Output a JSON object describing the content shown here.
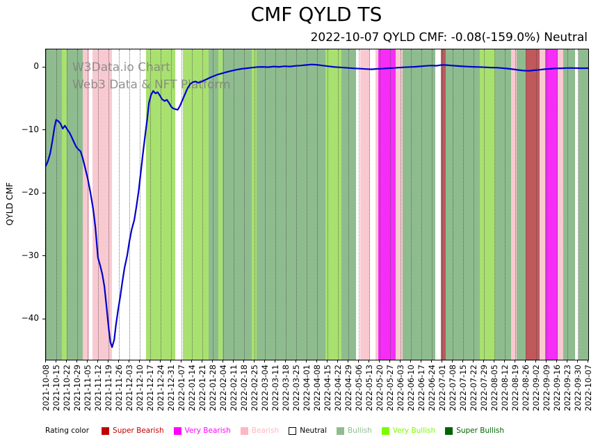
{
  "title": "CMF QYLD TS",
  "subtitle": "2022-10-07 QYLD CMF: -0.08(-159.0%) Neutral",
  "watermark": {
    "line1": "W3Data.io Chart",
    "line2": "Web3 Data & NFT Platform"
  },
  "legend": {
    "label": "Rating color",
    "items": [
      {
        "id": "super-bearish",
        "label": "Super Bearish",
        "color": "#c00000",
        "text_color": "#c00000"
      },
      {
        "id": "very-bearish",
        "label": "Very Bearish",
        "color": "#ff00ff",
        "text_color": "#ff00ff"
      },
      {
        "id": "bearish",
        "label": "Bearish",
        "color": "#ffb6c1",
        "text_color": "#ffb6c1"
      },
      {
        "id": "neutral",
        "label": "Neutral",
        "color": "#ffffff",
        "text_color": "#000000"
      },
      {
        "id": "bullish",
        "label": "Bullish",
        "color": "#8fbc8f",
        "text_color": "#8fbc8f"
      },
      {
        "id": "very-bullish",
        "label": "Very Bullish",
        "color": "#7cfc00",
        "text_color": "#7cfc00"
      },
      {
        "id": "super-bullish",
        "label": "Super Bullish",
        "color": "#006400",
        "text_color": "#006400"
      }
    ]
  },
  "chart_data": {
    "type": "line",
    "title": "CMF QYLD TS",
    "xlabel": "",
    "ylabel": "QYLD CMF",
    "ylim": [
      -46.4,
      2.9
    ],
    "grid": "vertical-dotted",
    "legend_position": "bottom",
    "yticks": [
      {
        "value": 0,
        "label": "0"
      },
      {
        "value": -10,
        "label": "−10"
      },
      {
        "value": -20,
        "label": "−20"
      },
      {
        "value": -30,
        "label": "−30"
      },
      {
        "value": -40,
        "label": "−40"
      }
    ],
    "x_tick_labels": [
      "2021-10-08",
      "2021-10-15",
      "2021-10-22",
      "2021-10-29",
      "2021-11-05",
      "2021-11-12",
      "2021-11-19",
      "2021-11-26",
      "2021-12-03",
      "2021-12-10",
      "2021-12-17",
      "2021-12-24",
      "2021-12-31",
      "2022-01-07",
      "2022-01-14",
      "2022-01-21",
      "2022-01-28",
      "2022-02-04",
      "2022-02-11",
      "2022-02-18",
      "2022-02-25",
      "2022-03-04",
      "2022-03-11",
      "2022-03-18",
      "2022-03-25",
      "2022-04-01",
      "2022-04-08",
      "2022-04-15",
      "2022-04-22",
      "2022-04-29",
      "2022-05-06",
      "2022-05-13",
      "2022-05-20",
      "2022-05-27",
      "2022-06-03",
      "2022-06-10",
      "2022-06-17",
      "2022-06-24",
      "2022-07-01",
      "2022-07-08",
      "2022-07-15",
      "2022-07-22",
      "2022-07-29",
      "2022-08-05",
      "2022-08-12",
      "2022-08-19",
      "2022-08-26",
      "2022-09-02",
      "2022-09-09",
      "2022-09-16",
      "2022-09-23",
      "2022-09-30",
      "2022-10-07"
    ],
    "rating_colors": {
      "super_bearish": "#c0585c",
      "very_bearish": "#f62df6",
      "bearish": "#f9c9d1",
      "neutral": "#ffffff",
      "bullish": "#8fbc8f",
      "very_bullish": "#a9e170",
      "super_bullish": "#2e8b2e"
    },
    "background_bands": [
      {
        "from": 0.0,
        "to": 0.03,
        "rating": "bullish"
      },
      {
        "from": 0.03,
        "to": 0.038,
        "rating": "very_bullish"
      },
      {
        "from": 0.038,
        "to": 0.068,
        "rating": "bullish"
      },
      {
        "from": 0.068,
        "to": 0.08,
        "rating": "bearish"
      },
      {
        "from": 0.08,
        "to": 0.086,
        "rating": "neutral"
      },
      {
        "from": 0.086,
        "to": 0.122,
        "rating": "bearish"
      },
      {
        "from": 0.122,
        "to": 0.184,
        "rating": "neutral"
      },
      {
        "from": 0.184,
        "to": 0.238,
        "rating": "very_bullish"
      },
      {
        "from": 0.238,
        "to": 0.252,
        "rating": "neutral"
      },
      {
        "from": 0.252,
        "to": 0.3,
        "rating": "very_bullish"
      },
      {
        "from": 0.3,
        "to": 0.318,
        "rating": "bullish"
      },
      {
        "from": 0.318,
        "to": 0.326,
        "rating": "very_bullish"
      },
      {
        "from": 0.326,
        "to": 0.38,
        "rating": "bullish"
      },
      {
        "from": 0.38,
        "to": 0.388,
        "rating": "very_bullish"
      },
      {
        "from": 0.388,
        "to": 0.515,
        "rating": "bullish"
      },
      {
        "from": 0.515,
        "to": 0.545,
        "rating": "very_bullish"
      },
      {
        "from": 0.545,
        "to": 0.572,
        "rating": "bullish"
      },
      {
        "from": 0.572,
        "to": 0.58,
        "rating": "neutral"
      },
      {
        "from": 0.58,
        "to": 0.598,
        "rating": "bearish"
      },
      {
        "from": 0.598,
        "to": 0.608,
        "rating": "neutral"
      },
      {
        "from": 0.608,
        "to": 0.613,
        "rating": "bearish"
      },
      {
        "from": 0.613,
        "to": 0.645,
        "rating": "very_bearish"
      },
      {
        "from": 0.645,
        "to": 0.658,
        "rating": "bearish"
      },
      {
        "from": 0.658,
        "to": 0.718,
        "rating": "bullish"
      },
      {
        "from": 0.718,
        "to": 0.728,
        "rating": "neutral"
      },
      {
        "from": 0.728,
        "to": 0.737,
        "rating": "super_bearish"
      },
      {
        "from": 0.737,
        "to": 0.8,
        "rating": "bullish"
      },
      {
        "from": 0.8,
        "to": 0.828,
        "rating": "very_bullish"
      },
      {
        "from": 0.828,
        "to": 0.858,
        "rating": "bullish"
      },
      {
        "from": 0.858,
        "to": 0.868,
        "rating": "bearish"
      },
      {
        "from": 0.868,
        "to": 0.885,
        "rating": "bullish"
      },
      {
        "from": 0.885,
        "to": 0.91,
        "rating": "super_bearish"
      },
      {
        "from": 0.91,
        "to": 0.92,
        "rating": "bearish"
      },
      {
        "from": 0.92,
        "to": 0.944,
        "rating": "very_bearish"
      },
      {
        "from": 0.944,
        "to": 0.954,
        "rating": "bearish"
      },
      {
        "from": 0.954,
        "to": 0.976,
        "rating": "bullish"
      },
      {
        "from": 0.976,
        "to": 0.982,
        "rating": "neutral"
      },
      {
        "from": 0.982,
        "to": 1.0,
        "rating": "bullish"
      }
    ],
    "series": [
      {
        "name": "QYLD CMF",
        "color": "#0000cd",
        "points": [
          [
            0.0,
            -15.6
          ],
          [
            0.004,
            -14.8
          ],
          [
            0.008,
            -13.6
          ],
          [
            0.012,
            -11.6
          ],
          [
            0.016,
            -9.4
          ],
          [
            0.019,
            -8.3
          ],
          [
            0.023,
            -8.5
          ],
          [
            0.027,
            -8.9
          ],
          [
            0.031,
            -9.7
          ],
          [
            0.035,
            -9.2
          ],
          [
            0.04,
            -9.9
          ],
          [
            0.044,
            -10.4
          ],
          [
            0.048,
            -11.1
          ],
          [
            0.052,
            -11.9
          ],
          [
            0.056,
            -12.6
          ],
          [
            0.06,
            -13.0
          ],
          [
            0.064,
            -13.3
          ],
          [
            0.068,
            -14.4
          ],
          [
            0.072,
            -15.8
          ],
          [
            0.077,
            -17.6
          ],
          [
            0.082,
            -19.8
          ],
          [
            0.087,
            -22.4
          ],
          [
            0.091,
            -25.2
          ],
          [
            0.096,
            -30.2
          ],
          [
            0.1,
            -31.4
          ],
          [
            0.104,
            -32.8
          ],
          [
            0.108,
            -34.8
          ],
          [
            0.112,
            -38.2
          ],
          [
            0.116,
            -41.6
          ],
          [
            0.119,
            -43.6
          ],
          [
            0.122,
            -44.4
          ],
          [
            0.126,
            -43.2
          ],
          [
            0.129,
            -41.0
          ],
          [
            0.133,
            -38.6
          ],
          [
            0.137,
            -36.4
          ],
          [
            0.141,
            -34.0
          ],
          [
            0.145,
            -31.8
          ],
          [
            0.15,
            -29.8
          ],
          [
            0.154,
            -27.6
          ],
          [
            0.158,
            -25.8
          ],
          [
            0.163,
            -24.2
          ],
          [
            0.167,
            -22.0
          ],
          [
            0.171,
            -19.6
          ],
          [
            0.175,
            -16.6
          ],
          [
            0.179,
            -13.6
          ],
          [
            0.183,
            -10.8
          ],
          [
            0.187,
            -8.0
          ],
          [
            0.19,
            -5.6
          ],
          [
            0.194,
            -4.3
          ],
          [
            0.198,
            -3.7
          ],
          [
            0.202,
            -4.1
          ],
          [
            0.206,
            -3.9
          ],
          [
            0.21,
            -4.4
          ],
          [
            0.214,
            -5.0
          ],
          [
            0.219,
            -5.3
          ],
          [
            0.223,
            -5.1
          ],
          [
            0.227,
            -5.6
          ],
          [
            0.231,
            -6.2
          ],
          [
            0.235,
            -6.5
          ],
          [
            0.239,
            -6.6
          ],
          [
            0.243,
            -6.7
          ],
          [
            0.247,
            -6.1
          ],
          [
            0.251,
            -5.3
          ],
          [
            0.256,
            -4.3
          ],
          [
            0.261,
            -3.3
          ],
          [
            0.266,
            -2.6
          ],
          [
            0.271,
            -2.3
          ],
          [
            0.276,
            -2.2
          ],
          [
            0.281,
            -2.4
          ],
          [
            0.286,
            -2.25
          ],
          [
            0.291,
            -2.05
          ],
          [
            0.296,
            -1.85
          ],
          [
            0.302,
            -1.6
          ],
          [
            0.308,
            -1.4
          ],
          [
            0.315,
            -1.15
          ],
          [
            0.323,
            -0.95
          ],
          [
            0.331,
            -0.75
          ],
          [
            0.34,
            -0.55
          ],
          [
            0.35,
            -0.35
          ],
          [
            0.36,
            -0.2
          ],
          [
            0.37,
            -0.1
          ],
          [
            0.38,
            0.0
          ],
          [
            0.39,
            0.1
          ],
          [
            0.4,
            0.12
          ],
          [
            0.41,
            0.08
          ],
          [
            0.42,
            0.18
          ],
          [
            0.43,
            0.12
          ],
          [
            0.44,
            0.22
          ],
          [
            0.45,
            0.18
          ],
          [
            0.46,
            0.28
          ],
          [
            0.47,
            0.34
          ],
          [
            0.48,
            0.42
          ],
          [
            0.49,
            0.5
          ],
          [
            0.5,
            0.46
          ],
          [
            0.51,
            0.34
          ],
          [
            0.52,
            0.22
          ],
          [
            0.53,
            0.12
          ],
          [
            0.54,
            0.06
          ],
          [
            0.55,
            0.0
          ],
          [
            0.56,
            -0.06
          ],
          [
            0.57,
            -0.12
          ],
          [
            0.58,
            -0.16
          ],
          [
            0.59,
            -0.22
          ],
          [
            0.6,
            -0.26
          ],
          [
            0.61,
            -0.2
          ],
          [
            0.62,
            -0.16
          ],
          [
            0.63,
            -0.1
          ],
          [
            0.64,
            -0.06
          ],
          [
            0.65,
            0.0
          ],
          [
            0.66,
            0.06
          ],
          [
            0.67,
            0.1
          ],
          [
            0.68,
            0.14
          ],
          [
            0.69,
            0.2
          ],
          [
            0.7,
            0.28
          ],
          [
            0.71,
            0.34
          ],
          [
            0.72,
            0.3
          ],
          [
            0.73,
            0.44
          ],
          [
            0.74,
            0.4
          ],
          [
            0.75,
            0.32
          ],
          [
            0.76,
            0.26
          ],
          [
            0.77,
            0.2
          ],
          [
            0.78,
            0.16
          ],
          [
            0.79,
            0.12
          ],
          [
            0.8,
            0.1
          ],
          [
            0.81,
            0.06
          ],
          [
            0.82,
            0.02
          ],
          [
            0.83,
            0.0
          ],
          [
            0.84,
            -0.06
          ],
          [
            0.85,
            -0.14
          ],
          [
            0.86,
            -0.24
          ],
          [
            0.87,
            -0.36
          ],
          [
            0.88,
            -0.46
          ],
          [
            0.89,
            -0.5
          ],
          [
            0.9,
            -0.42
          ],
          [
            0.91,
            -0.34
          ],
          [
            0.92,
            -0.24
          ],
          [
            0.93,
            -0.18
          ],
          [
            0.94,
            -0.12
          ],
          [
            0.95,
            -0.1
          ],
          [
            0.96,
            -0.06
          ],
          [
            0.97,
            -0.05
          ],
          [
            0.98,
            -0.08
          ],
          [
            0.99,
            -0.09
          ],
          [
            1.0,
            -0.08
          ]
        ]
      }
    ]
  }
}
